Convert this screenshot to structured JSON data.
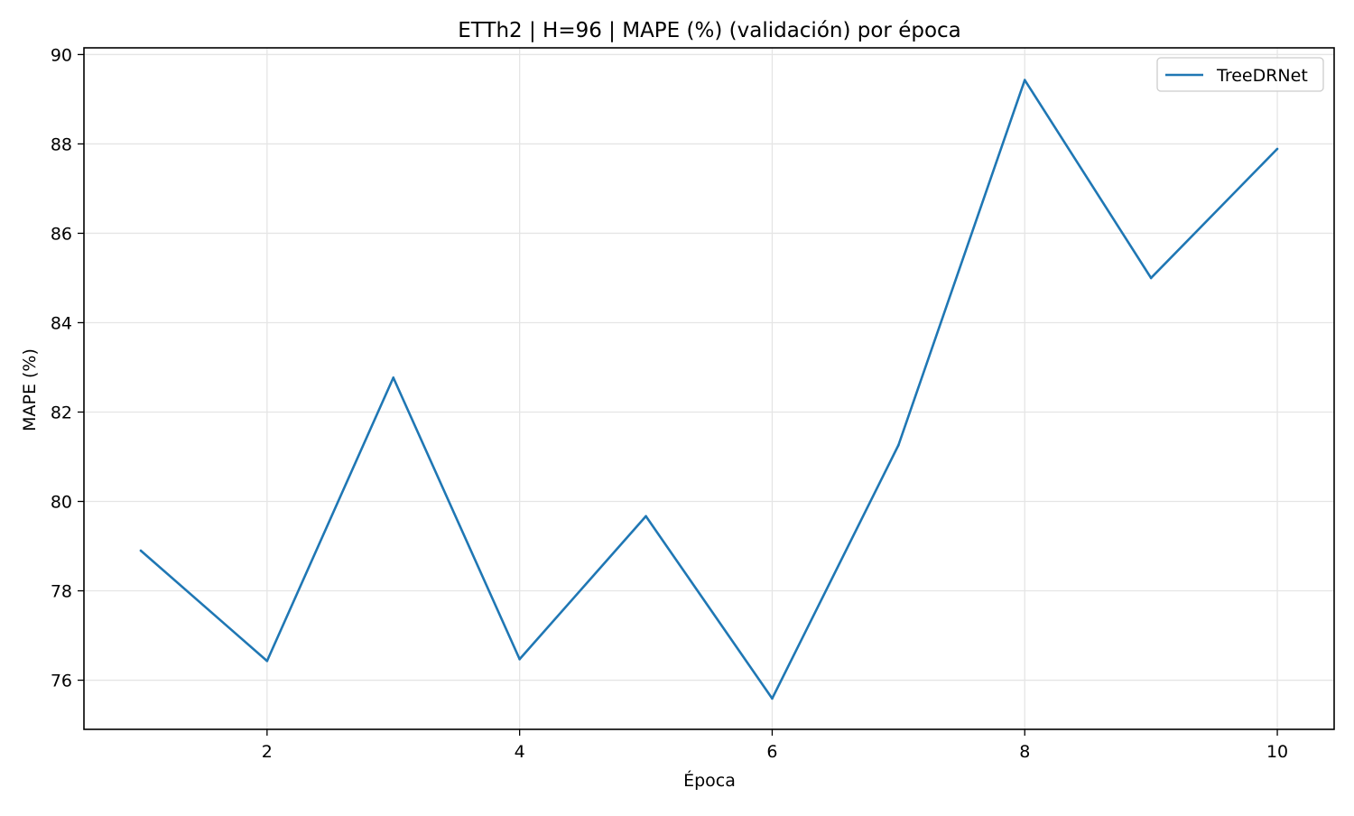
{
  "chart_data": {
    "type": "line",
    "title": "ETTh2 | H=96 | MAPE (%) (validación) por época",
    "xlabel": "Época",
    "ylabel": "MAPE (%)",
    "xlim": [
      0.55,
      10.45
    ],
    "ylim": [
      74.9,
      90.15
    ],
    "xticks": [
      2,
      4,
      6,
      8,
      10
    ],
    "yticks": [
      76,
      78,
      80,
      82,
      84,
      86,
      88,
      90
    ],
    "grid": true,
    "legend_position": "top-right",
    "x": [
      1,
      2,
      3,
      4,
      5,
      6,
      7,
      8,
      9,
      10
    ],
    "series": [
      {
        "name": "TreeDRNet",
        "color": "#1f77b4",
        "values": [
          78.9,
          76.43,
          82.77,
          76.47,
          79.67,
          75.59,
          81.26,
          89.43,
          85.0,
          87.89
        ]
      }
    ]
  }
}
